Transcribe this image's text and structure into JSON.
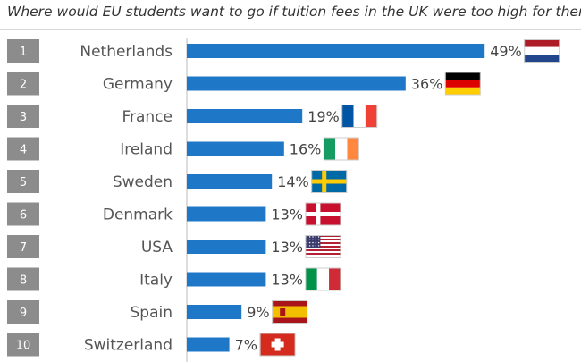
{
  "chart_data": {
    "type": "bar",
    "orientation": "horizontal",
    "title": "Where would EU students want to go if tuition fees in the UK were too high for them?",
    "ranks": [
      "1",
      "2",
      "3",
      "4",
      "5",
      "6",
      "7",
      "8",
      "9",
      "10"
    ],
    "categories": [
      "Netherlands",
      "Germany",
      "France",
      "Ireland",
      "Sweden",
      "Denmark",
      "USA",
      "Italy",
      "Spain",
      "Switzerland"
    ],
    "values": [
      49,
      36,
      19,
      16,
      14,
      13,
      13,
      13,
      9,
      7
    ],
    "value_labels": [
      "49%",
      "36%",
      "19%",
      "16%",
      "14%",
      "13%",
      "13%",
      "13%",
      "9%",
      "7%"
    ],
    "flag_icons": [
      "netherlands-flag-icon",
      "germany-flag-icon",
      "france-flag-icon",
      "ireland-flag-icon",
      "sweden-flag-icon",
      "denmark-flag-icon",
      "usa-flag-icon",
      "italy-flag-icon",
      "spain-flag-icon",
      "switzerland-flag-icon"
    ],
    "xlim": [
      0,
      50
    ],
    "grid": false,
    "colors": {
      "bar": "#1f77c8",
      "rank_box": "#8c8c8c"
    }
  }
}
